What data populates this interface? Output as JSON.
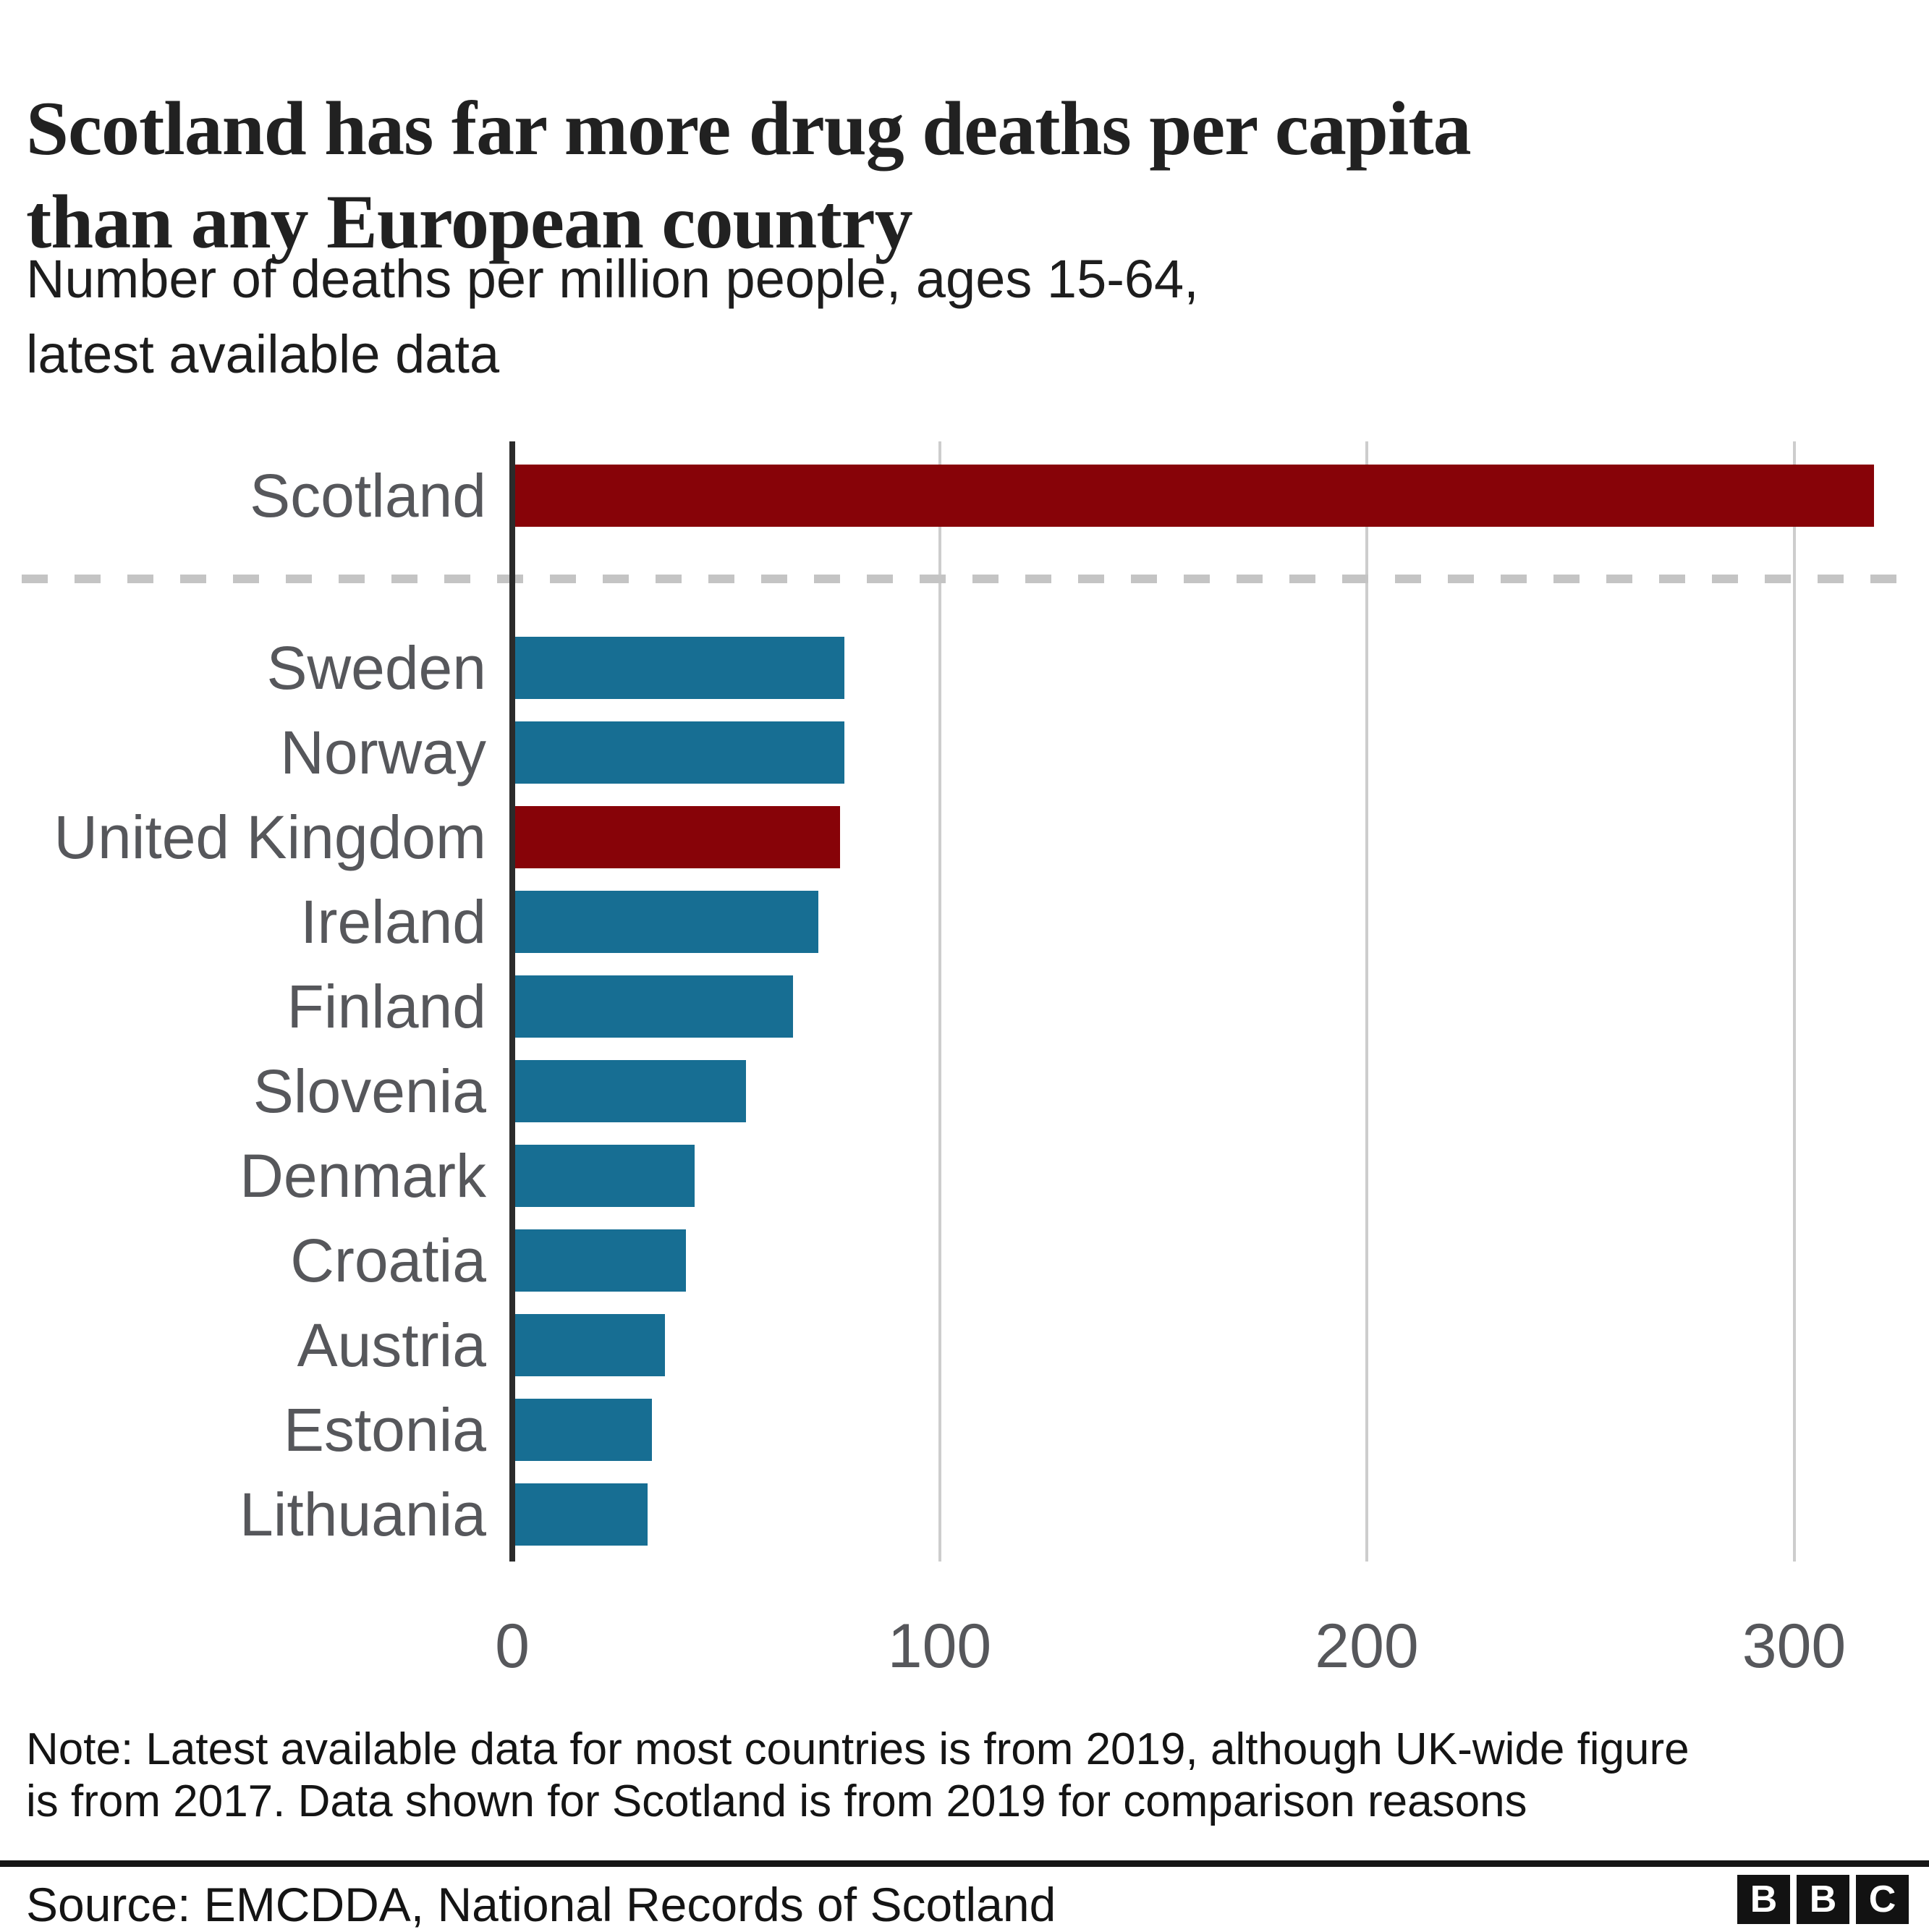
{
  "chart_data": {
    "type": "bar",
    "orientation": "horizontal",
    "title": "Scotland has far more drug deaths per capita than any European country",
    "title_lines": [
      "Scotland has far more drug deaths per capita",
      "than any European country"
    ],
    "subtitle": "Number of deaths per million people, ages 15-64, latest available data",
    "subtitle_lines": [
      "Number of deaths per million people, ages 15-64,",
      "latest available data"
    ],
    "categories": [
      "Scotland",
      "Sweden",
      "Norway",
      "United Kingdom",
      "Ireland",
      "Finland",
      "Slovenia",
      "Denmark",
      "Croatia",
      "Austria",
      "Estonia",
      "Lithuania"
    ],
    "values": [
      318,
      77,
      77,
      76,
      71,
      65,
      54,
      42,
      40,
      35,
      32,
      31
    ],
    "highlighted": [
      true,
      false,
      false,
      true,
      false,
      false,
      false,
      false,
      false,
      false,
      false,
      false
    ],
    "x_ticks": [
      0,
      100,
      200,
      300
    ],
    "xlim": [
      0,
      332
    ],
    "xlabel": "",
    "ylabel": "",
    "grid": "vertical gridlines at x ticks",
    "legend": "none",
    "separator_after_index": 0,
    "colors": {
      "highlight": "#870308",
      "default": "#176E93",
      "gridline": "#cdcdcd",
      "axis": "#2b2b2b",
      "separator": "#c4c4c4",
      "label": "#56575b"
    }
  },
  "note_lines": [
    "Note: Latest available data for most countries is from 2019, although UK-wide figure",
    "is from 2017. Data shown for Scotland is from 2019 for comparison reasons"
  ],
  "source": "Source: EMCDDA, National Records of Scotland",
  "logo": {
    "letters": [
      "B",
      "B",
      "C"
    ]
  }
}
